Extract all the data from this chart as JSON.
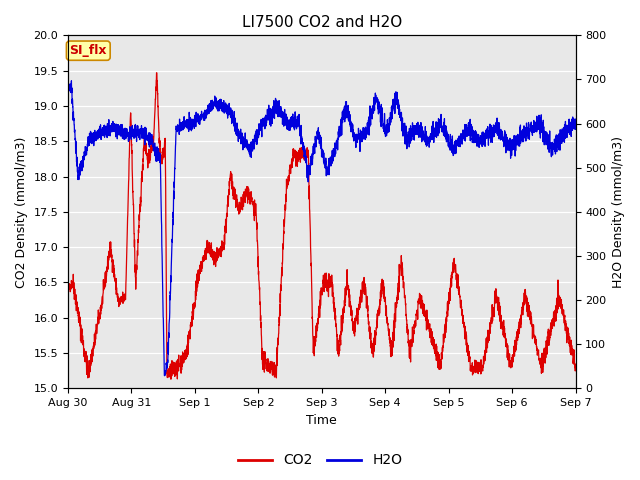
{
  "title": "LI7500 CO2 and H2O",
  "xlabel": "Time",
  "ylabel_left": "CO2 Density (mmol/m3)",
  "ylabel_right": "H2O Density (mmol/m3)",
  "co2_ylim": [
    15.0,
    20.0
  ],
  "h2o_ylim": [
    0,
    800
  ],
  "co2_color": "#dd0000",
  "h2o_color": "#0000dd",
  "bg_color": "#e8e8e8",
  "tab_label": "SI_flx",
  "tab_bg": "#ffffaa",
  "tab_border": "#cc8800",
  "tab_text_color": "#cc0000",
  "legend_co2": "CO2",
  "legend_h2o": "H2O",
  "x_tick_labels": [
    "Aug 30",
    "Aug 31",
    "Sep 1",
    "Sep 2",
    "Sep 3",
    "Sep 4",
    "Sep 5",
    "Sep 6",
    "Sep 7"
  ],
  "co2_yticks": [
    15.0,
    15.5,
    16.0,
    16.5,
    17.0,
    17.5,
    18.0,
    18.5,
    19.0,
    19.5,
    20.0
  ],
  "h2o_yticks": [
    0,
    100,
    200,
    300,
    400,
    500,
    600,
    700,
    800
  ]
}
